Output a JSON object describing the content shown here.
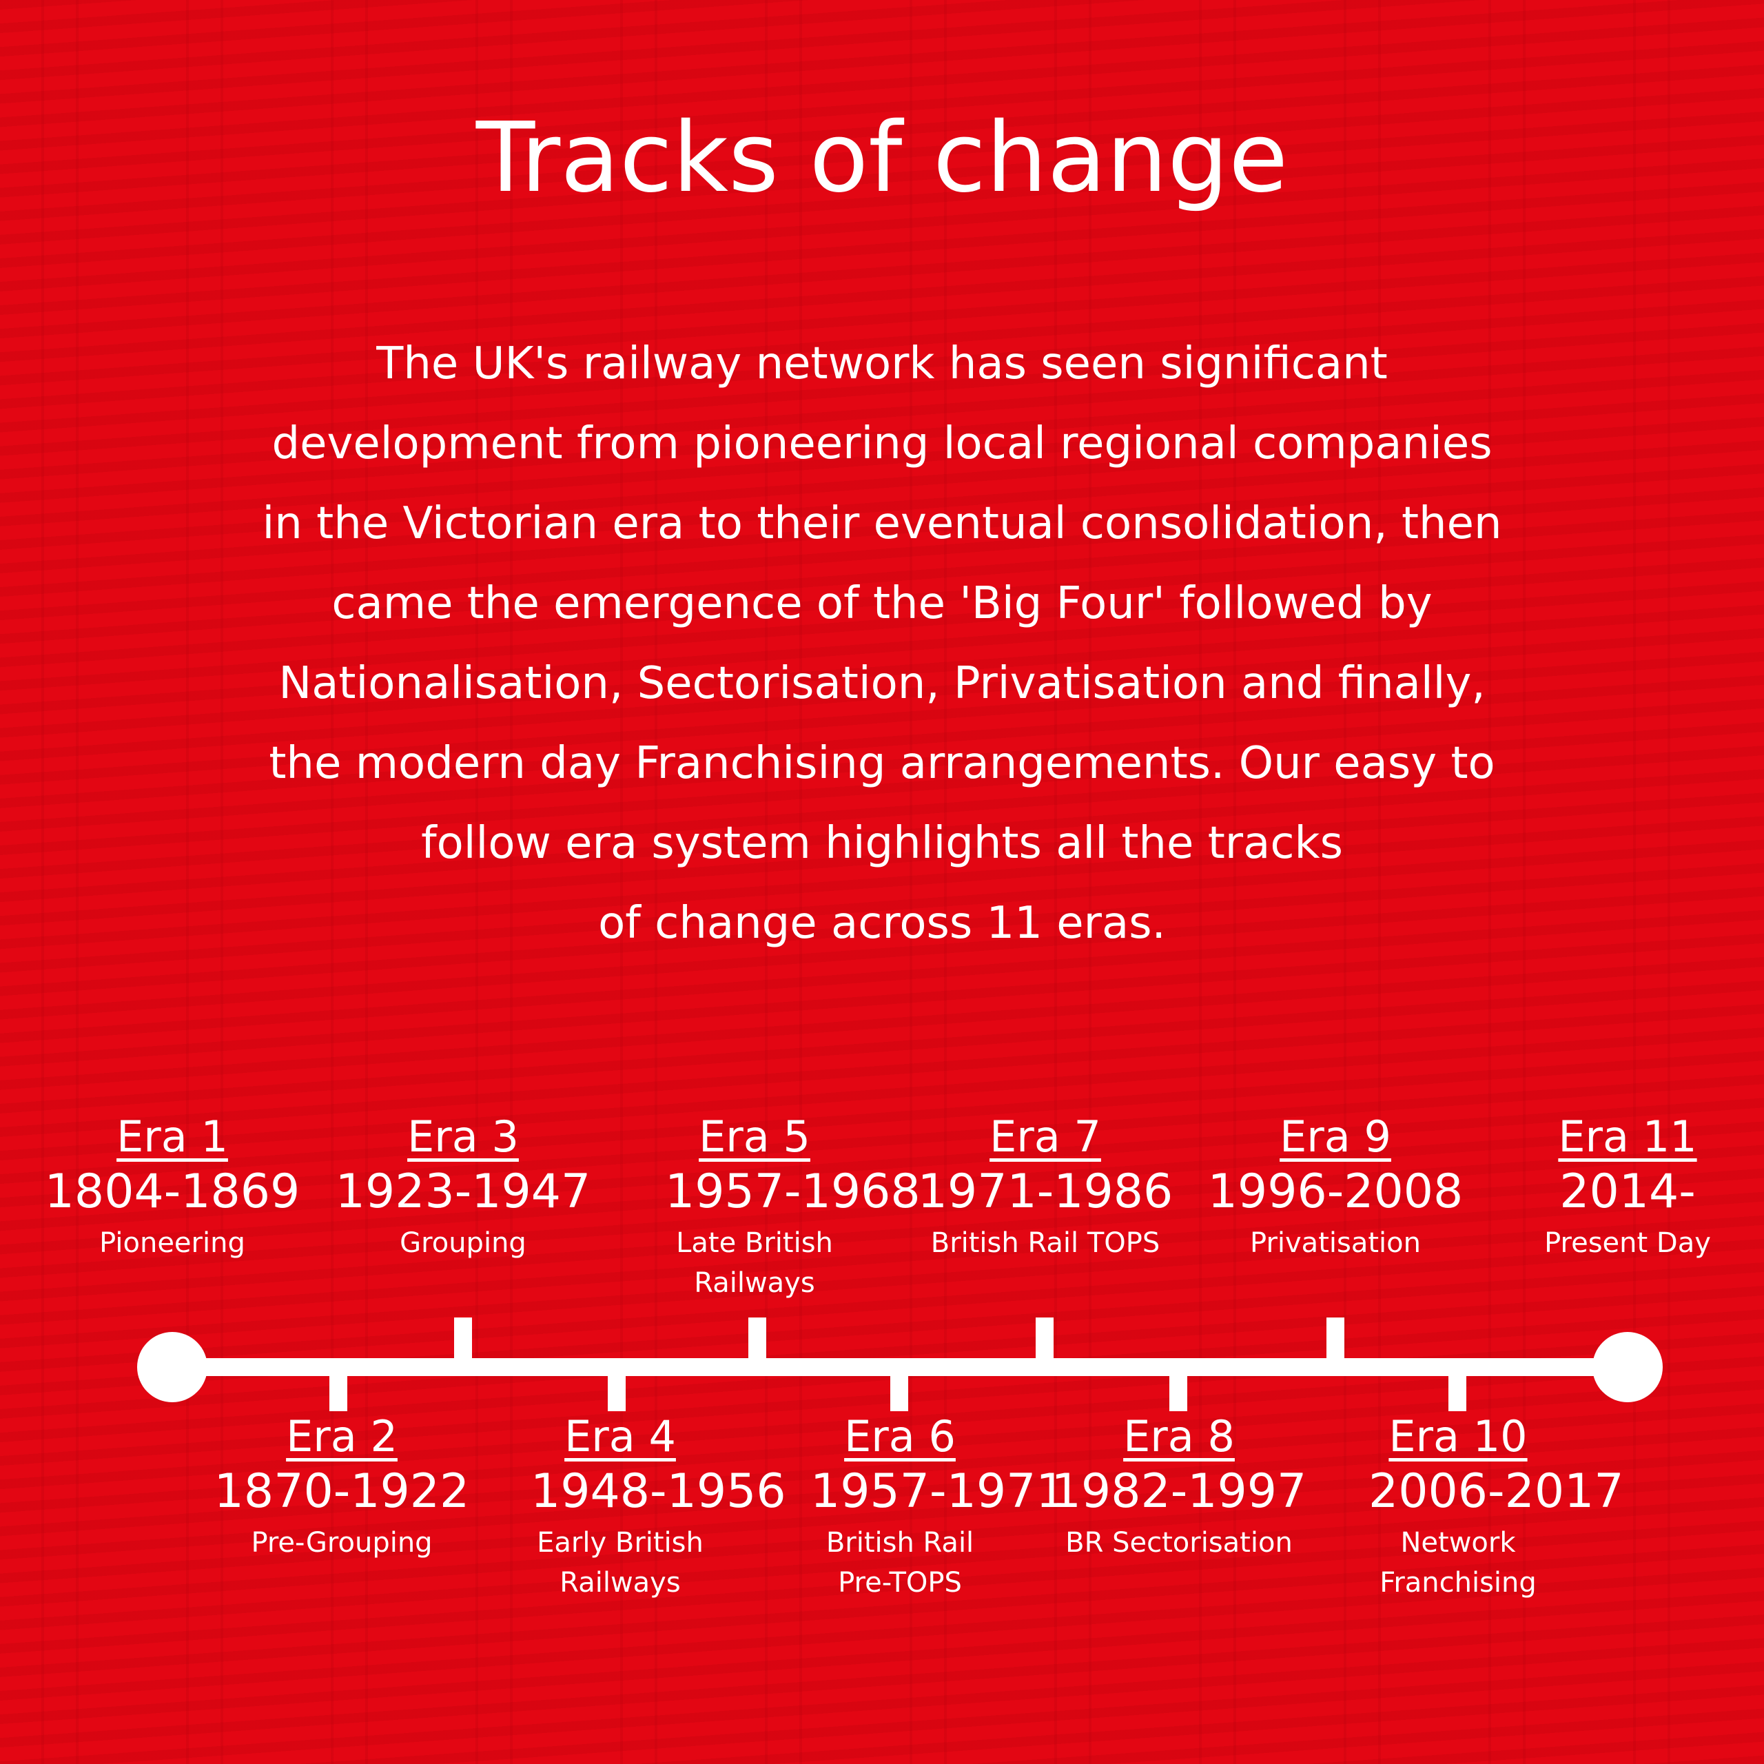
{
  "title": "Tracks of change",
  "intro_lines": [
    "The UK's railway network has seen significant",
    "development from pioneering local regional companies",
    "in the Victorian era to their eventual consolidation, then",
    "came the emergence of the 'Big Four' followed by",
    "Nationalisation, Sectorisation, Privatisation and finally,",
    "the modern day Franchising arrangements. Our easy to",
    "follow era system highlights all the tracks",
    "of change across 11 eras."
  ],
  "colors": {
    "background": "#e30613",
    "track_pattern": "#c8000e",
    "foreground": "#ffffff"
  },
  "eras": [
    {
      "label": "Era 1",
      "years": "1804-1869",
      "name": "Pioneering"
    },
    {
      "label": "Era 2",
      "years": "1870-1922",
      "name": "Pre-Grouping"
    },
    {
      "label": "Era 3",
      "years": "1923-1947",
      "name": "Grouping"
    },
    {
      "label": "Era 4",
      "years": "1948-1956",
      "name": "Early British Railways"
    },
    {
      "label": "Era 5",
      "years": "1957-1968",
      "name": "Late British Railways"
    },
    {
      "label": "Era 6",
      "years": "1957-1971",
      "name": "British Rail Pre-TOPS"
    },
    {
      "label": "Era 7",
      "years": "1971-1986",
      "name": "British Rail TOPS"
    },
    {
      "label": "Era 8",
      "years": "1982-1997",
      "name": "BR Sectorisation"
    },
    {
      "label": "Era 9",
      "years": "1996-2008",
      "name": "Privatisation"
    },
    {
      "label": "Era 10",
      "years": "2006-2017",
      "name": "Network Franchising"
    },
    {
      "label": "Era 11",
      "years": "2014-",
      "name": "Present Day"
    }
  ]
}
